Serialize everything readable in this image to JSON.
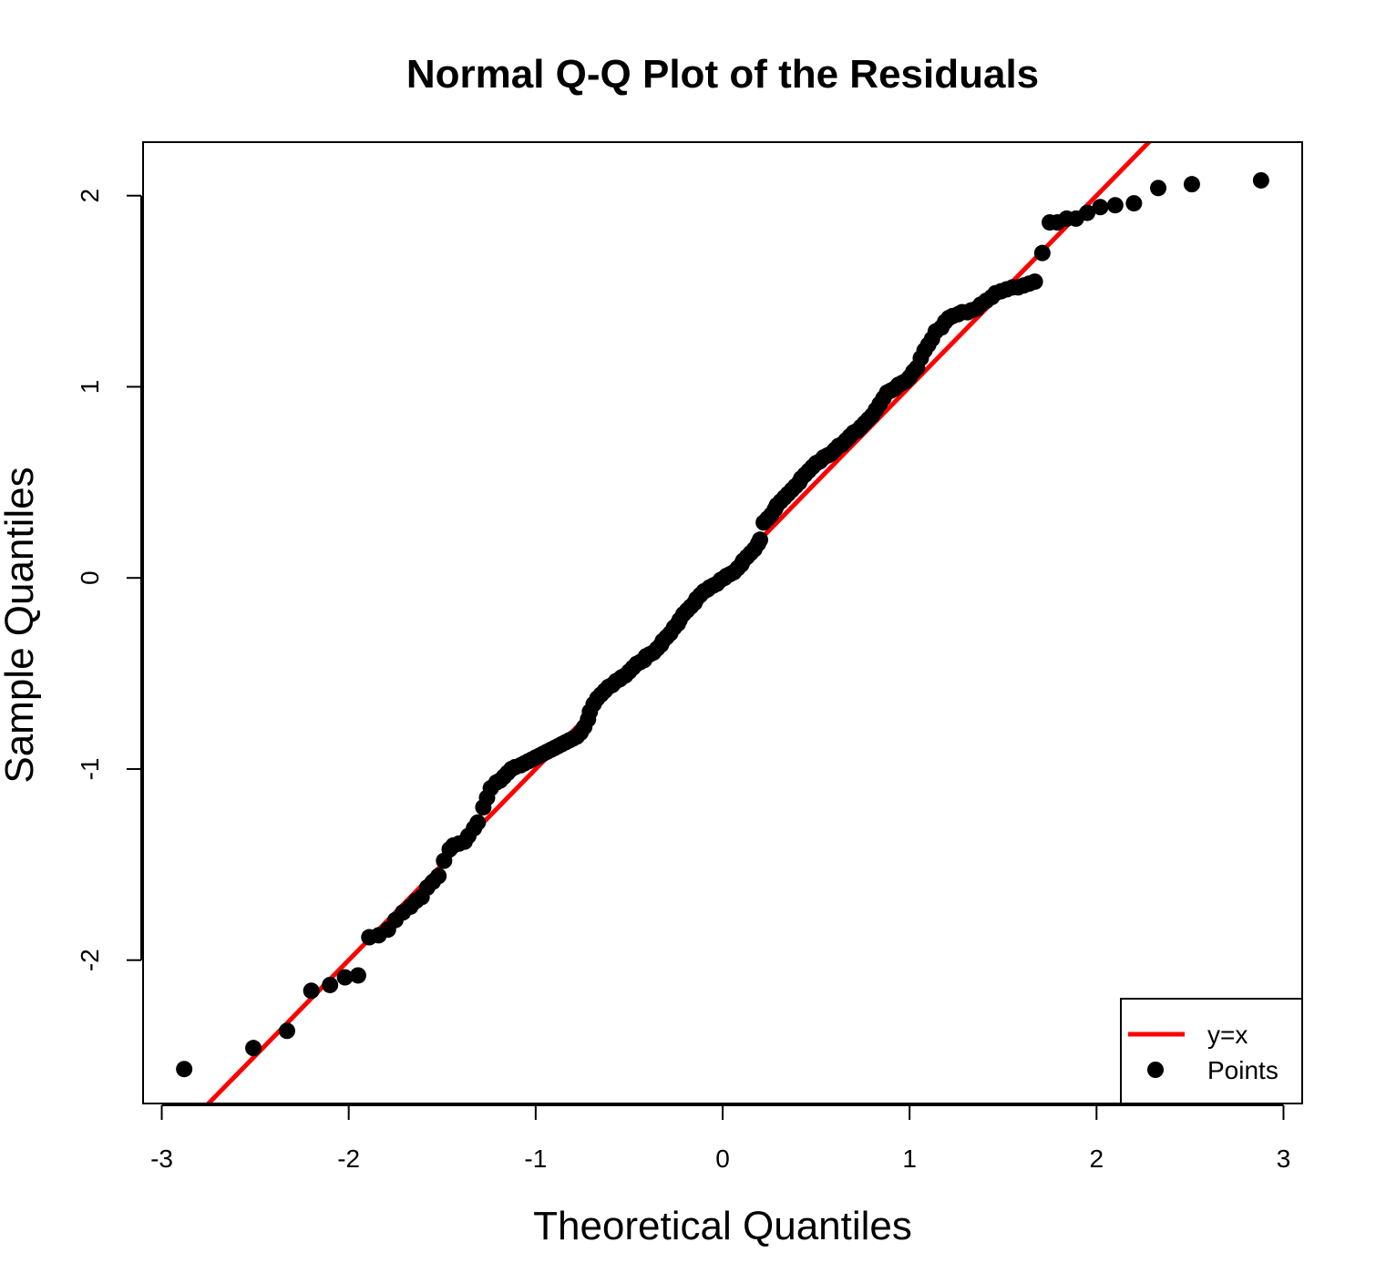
{
  "chart_data": {
    "type": "scatter",
    "title": "Normal Q-Q Plot of the Residuals",
    "xlabel": "Theoretical Quantiles",
    "ylabel": "Sample Quantiles",
    "xlim": [
      -3.1,
      3.1
    ],
    "ylim": [
      -2.75,
      2.28
    ],
    "x_ticks": [
      -3,
      -2,
      -1,
      0,
      1,
      2,
      3
    ],
    "x_tick_labels": [
      "-3",
      "-2",
      "-1",
      "0",
      "1",
      "2",
      "3"
    ],
    "y_ticks": [
      -2,
      -1,
      0,
      1,
      2
    ],
    "y_tick_labels": [
      "-2",
      "-1",
      "0",
      "1",
      "2"
    ],
    "grid": false,
    "legend": {
      "position": "bottom-right",
      "entries": [
        {
          "label": "y=x",
          "type": "line",
          "color": "#ff0000"
        },
        {
          "label": "Points",
          "type": "point",
          "color": "#000000"
        }
      ]
    },
    "reference_line": {
      "label": "y=x",
      "slope": 1,
      "intercept": 0,
      "color": "#ff0000"
    },
    "series": [
      {
        "name": "Points",
        "color": "#000000",
        "points": [
          [
            -2.88,
            -2.57
          ],
          [
            -2.51,
            -2.46
          ],
          [
            -2.33,
            -2.37
          ],
          [
            -2.2,
            -2.16
          ],
          [
            -2.1,
            -2.13
          ],
          [
            -2.02,
            -2.09
          ],
          [
            -1.95,
            -2.08
          ],
          [
            -1.89,
            -1.88
          ],
          [
            -1.84,
            -1.87
          ],
          [
            -1.79,
            -1.84
          ],
          [
            -1.75,
            -1.79
          ],
          [
            -1.71,
            -1.75
          ],
          [
            -1.67,
            -1.72
          ],
          [
            -1.64,
            -1.69
          ],
          [
            -1.61,
            -1.67
          ],
          [
            -1.58,
            -1.62
          ],
          [
            -1.55,
            -1.59
          ],
          [
            -1.52,
            -1.56
          ],
          [
            -1.49,
            -1.48
          ],
          [
            -1.46,
            -1.42
          ],
          [
            -1.44,
            -1.4
          ],
          [
            -1.41,
            -1.39
          ],
          [
            -1.38,
            -1.38
          ],
          [
            -1.36,
            -1.35
          ],
          [
            -1.33,
            -1.31
          ],
          [
            -1.31,
            -1.28
          ],
          [
            -1.28,
            -1.2
          ],
          [
            -1.26,
            -1.15
          ],
          [
            -1.24,
            -1.1
          ],
          [
            -1.21,
            -1.07
          ],
          [
            -1.19,
            -1.06
          ],
          [
            -1.17,
            -1.04
          ],
          [
            -1.15,
            -1.02
          ],
          [
            -1.13,
            -1.0
          ],
          [
            -1.11,
            -0.99
          ],
          [
            -1.08,
            -0.98
          ],
          [
            -1.06,
            -0.97
          ],
          [
            -1.04,
            -0.96
          ],
          [
            -1.02,
            -0.95
          ],
          [
            -1.0,
            -0.94
          ],
          [
            -0.98,
            -0.93
          ],
          [
            -0.96,
            -0.92
          ],
          [
            -0.94,
            -0.91
          ],
          [
            -0.92,
            -0.9
          ],
          [
            -0.9,
            -0.89
          ],
          [
            -0.88,
            -0.88
          ],
          [
            -0.86,
            -0.87
          ],
          [
            -0.84,
            -0.86
          ],
          [
            -0.82,
            -0.85
          ],
          [
            -0.8,
            -0.84
          ],
          [
            -0.78,
            -0.83
          ],
          [
            -0.76,
            -0.81
          ],
          [
            -0.74,
            -0.78
          ],
          [
            -0.72,
            -0.74
          ],
          [
            -0.71,
            -0.7
          ],
          [
            -0.69,
            -0.66
          ],
          [
            -0.67,
            -0.63
          ],
          [
            -0.65,
            -0.61
          ],
          [
            -0.63,
            -0.59
          ],
          [
            -0.61,
            -0.57
          ],
          [
            -0.59,
            -0.56
          ],
          [
            -0.57,
            -0.54
          ],
          [
            -0.55,
            -0.53
          ],
          [
            -0.54,
            -0.52
          ],
          [
            -0.52,
            -0.51
          ],
          [
            -0.5,
            -0.49
          ],
          [
            -0.48,
            -0.47
          ],
          [
            -0.46,
            -0.45
          ],
          [
            -0.44,
            -0.44
          ],
          [
            -0.42,
            -0.43
          ],
          [
            -0.41,
            -0.41
          ],
          [
            -0.39,
            -0.4
          ],
          [
            -0.37,
            -0.39
          ],
          [
            -0.35,
            -0.37
          ],
          [
            -0.33,
            -0.35
          ],
          [
            -0.32,
            -0.33
          ],
          [
            -0.3,
            -0.31
          ],
          [
            -0.28,
            -0.29
          ],
          [
            -0.26,
            -0.26
          ],
          [
            -0.24,
            -0.24
          ],
          [
            -0.23,
            -0.22
          ],
          [
            -0.21,
            -0.19
          ],
          [
            -0.19,
            -0.17
          ],
          [
            -0.17,
            -0.15
          ],
          [
            -0.15,
            -0.13
          ],
          [
            -0.14,
            -0.11
          ],
          [
            -0.12,
            -0.09
          ],
          [
            -0.1,
            -0.07
          ],
          [
            -0.08,
            -0.06
          ],
          [
            -0.07,
            -0.05
          ],
          [
            -0.05,
            -0.04
          ],
          [
            -0.03,
            -0.03
          ],
          [
            -0.01,
            -0.01
          ],
          [
            0.01,
            0.0
          ],
          [
            0.02,
            0.01
          ],
          [
            0.04,
            0.02
          ],
          [
            0.06,
            0.03
          ],
          [
            0.08,
            0.05
          ],
          [
            0.1,
            0.07
          ],
          [
            0.11,
            0.09
          ],
          [
            0.13,
            0.11
          ],
          [
            0.15,
            0.13
          ],
          [
            0.17,
            0.15
          ],
          [
            0.19,
            0.18
          ],
          [
            0.2,
            0.2
          ],
          [
            0.22,
            0.29
          ],
          [
            0.24,
            0.31
          ],
          [
            0.26,
            0.33
          ],
          [
            0.28,
            0.36
          ],
          [
            0.29,
            0.38
          ],
          [
            0.31,
            0.4
          ],
          [
            0.33,
            0.42
          ],
          [
            0.35,
            0.44
          ],
          [
            0.37,
            0.46
          ],
          [
            0.39,
            0.48
          ],
          [
            0.41,
            0.5
          ],
          [
            0.42,
            0.52
          ],
          [
            0.44,
            0.54
          ],
          [
            0.46,
            0.56
          ],
          [
            0.48,
            0.58
          ],
          [
            0.5,
            0.6
          ],
          [
            0.52,
            0.61
          ],
          [
            0.54,
            0.63
          ],
          [
            0.56,
            0.64
          ],
          [
            0.58,
            0.65
          ],
          [
            0.6,
            0.67
          ],
          [
            0.62,
            0.69
          ],
          [
            0.64,
            0.7
          ],
          [
            0.66,
            0.72
          ],
          [
            0.68,
            0.74
          ],
          [
            0.7,
            0.76
          ],
          [
            0.72,
            0.77
          ],
          [
            0.74,
            0.79
          ],
          [
            0.76,
            0.81
          ],
          [
            0.78,
            0.83
          ],
          [
            0.8,
            0.85
          ],
          [
            0.82,
            0.88
          ],
          [
            0.84,
            0.91
          ],
          [
            0.86,
            0.94
          ],
          [
            0.88,
            0.97
          ],
          [
            0.9,
            0.98
          ],
          [
            0.92,
            0.99
          ],
          [
            0.94,
            1.01
          ],
          [
            0.96,
            1.02
          ],
          [
            0.98,
            1.03
          ],
          [
            1.0,
            1.05
          ],
          [
            1.02,
            1.08
          ],
          [
            1.04,
            1.1
          ],
          [
            1.06,
            1.15
          ],
          [
            1.08,
            1.19
          ],
          [
            1.1,
            1.22
          ],
          [
            1.12,
            1.25
          ],
          [
            1.14,
            1.29
          ],
          [
            1.17,
            1.31
          ],
          [
            1.19,
            1.34
          ],
          [
            1.21,
            1.36
          ],
          [
            1.23,
            1.37
          ],
          [
            1.26,
            1.38
          ],
          [
            1.28,
            1.39
          ],
          [
            1.31,
            1.39
          ],
          [
            1.33,
            1.4
          ],
          [
            1.36,
            1.41
          ],
          [
            1.38,
            1.43
          ],
          [
            1.41,
            1.45
          ],
          [
            1.44,
            1.47
          ],
          [
            1.46,
            1.49
          ],
          [
            1.49,
            1.5
          ],
          [
            1.52,
            1.51
          ],
          [
            1.55,
            1.52
          ],
          [
            1.58,
            1.52
          ],
          [
            1.61,
            1.53
          ],
          [
            1.64,
            1.54
          ],
          [
            1.67,
            1.55
          ],
          [
            1.71,
            1.7
          ],
          [
            1.75,
            1.86
          ],
          [
            1.79,
            1.86
          ],
          [
            1.84,
            1.88
          ],
          [
            1.89,
            1.88
          ],
          [
            1.95,
            1.91
          ],
          [
            2.02,
            1.94
          ],
          [
            2.1,
            1.95
          ],
          [
            2.2,
            1.96
          ],
          [
            2.33,
            2.04
          ],
          [
            2.51,
            2.06
          ],
          [
            2.88,
            2.08
          ]
        ]
      }
    ]
  }
}
